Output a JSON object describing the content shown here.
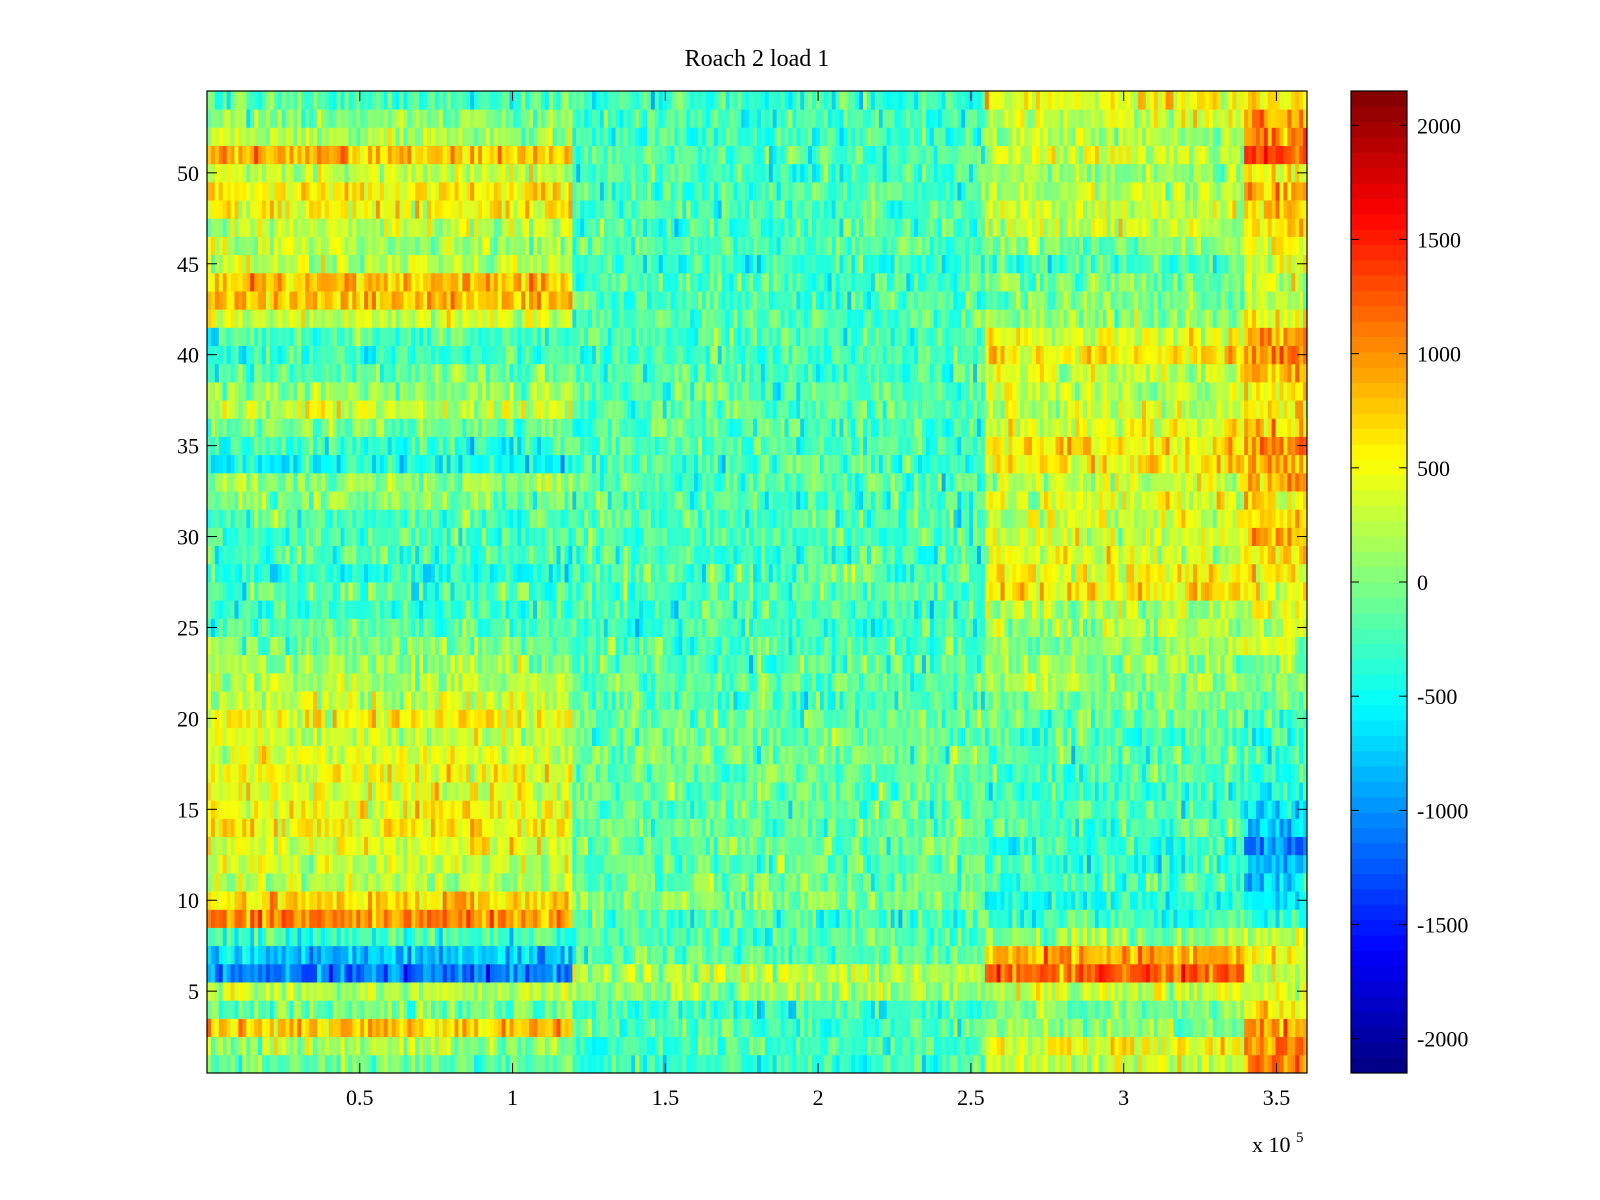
{
  "chart_data": {
    "type": "heatmap",
    "title": "Roach 2 load 1",
    "xlabel": "",
    "ylabel": "",
    "colormap": "jet",
    "x_range": [
      0,
      360000
    ],
    "y_range": [
      0.5,
      54.5
    ],
    "rows": 54,
    "xlim": [
      0,
      3.6
    ],
    "ylim": [
      0.5,
      54.5
    ],
    "x_multiplier": {
      "base": "x 10",
      "exponent": "5"
    },
    "x_ticks": [
      0.5,
      1,
      1.5,
      2,
      2.5,
      3,
      3.5
    ],
    "x_tick_labels": [
      "0.5",
      "1",
      "1.5",
      "2",
      "2.5",
      "3",
      "3.5"
    ],
    "y_ticks": [
      5,
      10,
      15,
      20,
      25,
      30,
      35,
      40,
      45,
      50
    ],
    "y_tick_labels": [
      "5",
      "10",
      "15",
      "20",
      "25",
      "30",
      "35",
      "40",
      "45",
      "50"
    ],
    "colorbar": {
      "range": [
        -2150,
        2150
      ],
      "ticks": [
        -2000,
        -1500,
        -1000,
        -500,
        0,
        500,
        1000,
        1500,
        2000
      ],
      "tick_labels": [
        "-2000",
        "-1500",
        "-1000",
        "-500",
        "0",
        "500",
        "1000",
        "1500",
        "2000"
      ]
    },
    "segments_x": [
      0,
      1.2,
      2.55,
      3.4,
      3.6
    ],
    "row_segment_means": [
      [
        -100,
        -300,
        300,
        1100
      ],
      [
        100,
        -250,
        500,
        1000
      ],
      [
        800,
        -200,
        100,
        900
      ],
      [
        -100,
        -300,
        0,
        500
      ],
      [
        200,
        100,
        300,
        500
      ],
      [
        -1100,
        200,
        1200,
        400
      ],
      [
        -800,
        -200,
        900,
        500
      ],
      [
        -300,
        -200,
        100,
        200
      ],
      [
        1000,
        -250,
        -300,
        -300
      ],
      [
        700,
        0,
        -400,
        -500
      ],
      [
        200,
        -100,
        -200,
        -700
      ],
      [
        300,
        -100,
        -300,
        -800
      ],
      [
        400,
        -100,
        -300,
        -1000
      ],
      [
        600,
        -100,
        -200,
        -700
      ],
      [
        500,
        -150,
        -200,
        -600
      ],
      [
        400,
        -100,
        -300,
        -500
      ],
      [
        500,
        -100,
        -200,
        -400
      ],
      [
        400,
        -100,
        -200,
        -300
      ],
      [
        300,
        -100,
        -200,
        -300
      ],
      [
        500,
        -100,
        -100,
        -200
      ],
      [
        300,
        -200,
        0,
        -100
      ],
      [
        200,
        -150,
        100,
        0
      ],
      [
        100,
        -200,
        100,
        100
      ],
      [
        0,
        -200,
        100,
        200
      ],
      [
        -200,
        -250,
        200,
        300
      ],
      [
        -300,
        -250,
        200,
        400
      ],
      [
        -200,
        -200,
        600,
        400
      ],
      [
        -400,
        -200,
        500,
        700
      ],
      [
        -200,
        -250,
        300,
        600
      ],
      [
        -300,
        -200,
        400,
        800
      ],
      [
        -200,
        -200,
        300,
        700
      ],
      [
        0,
        -250,
        400,
        600
      ],
      [
        100,
        -200,
        300,
        800
      ],
      [
        -500,
        -250,
        600,
        900
      ],
      [
        -300,
        -200,
        600,
        1000
      ],
      [
        0,
        -200,
        400,
        700
      ],
      [
        300,
        -200,
        300,
        600
      ],
      [
        100,
        -200,
        300,
        600
      ],
      [
        -100,
        -200,
        300,
        800
      ],
      [
        -300,
        -250,
        600,
        1000
      ],
      [
        -200,
        -200,
        400,
        900
      ],
      [
        300,
        -200,
        100,
        500
      ],
      [
        800,
        -200,
        0,
        400
      ],
      [
        800,
        -200,
        0,
        300
      ],
      [
        300,
        -300,
        -200,
        300
      ],
      [
        200,
        -200,
        0,
        400
      ],
      [
        300,
        -250,
        300,
        600
      ],
      [
        500,
        -200,
        300,
        700
      ],
      [
        600,
        -200,
        200,
        800
      ],
      [
        300,
        -250,
        100,
        500
      ],
      [
        800,
        -200,
        300,
        1200
      ],
      [
        200,
        -300,
        200,
        1000
      ],
      [
        0,
        -250,
        300,
        900
      ],
      [
        -200,
        -300,
        500,
        700
      ]
    ]
  }
}
